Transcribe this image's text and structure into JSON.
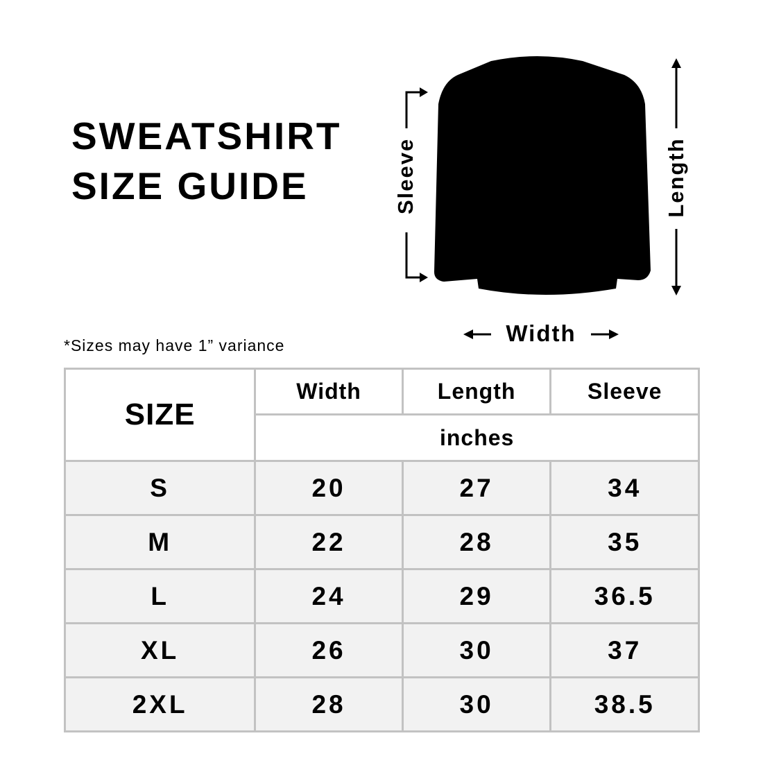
{
  "title_line1": "SWEATSHIRT",
  "title_line2": "SIZE GUIDE",
  "note": "*Sizes may have 1” variance",
  "diagram": {
    "sleeve_label": "Sleeve",
    "length_label": "Length",
    "width_label": "Width",
    "garment_color": "#000000"
  },
  "table": {
    "size_header": "SIZE",
    "columns": [
      "Width",
      "Length",
      "Sleeve"
    ],
    "unit": "inches",
    "rows": [
      {
        "size": "S",
        "values": [
          "20",
          "27",
          "34"
        ]
      },
      {
        "size": "M",
        "values": [
          "22",
          "28",
          "35"
        ]
      },
      {
        "size": "L",
        "values": [
          "24",
          "29",
          "36.5"
        ]
      },
      {
        "size": "XL",
        "values": [
          "26",
          "30",
          "37"
        ]
      },
      {
        "size": "2XL",
        "values": [
          "28",
          "30",
          "38.5"
        ]
      }
    ],
    "border_color": "#c2c2c2",
    "row_background": "#f2f2f2"
  }
}
